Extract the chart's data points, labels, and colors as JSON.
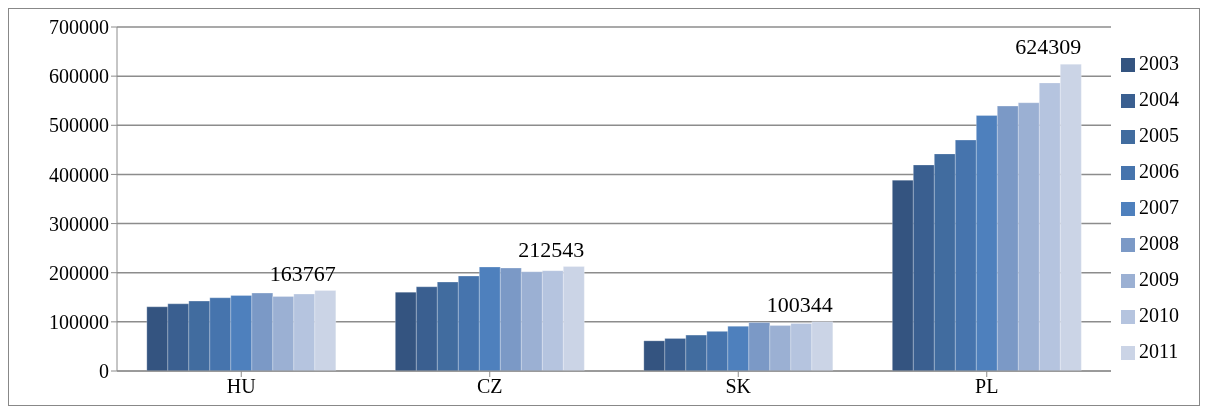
{
  "chart_data": {
    "type": "bar",
    "categories": [
      "HU",
      "CZ",
      "SK",
      "PL"
    ],
    "series": [
      {
        "name": "2003",
        "color": "#345480",
        "values": [
          130600,
          160500,
          61400,
          388400
        ]
      },
      {
        "name": "2004",
        "color": "#3a5f90",
        "values": [
          136700,
          171400,
          66200,
          419200
        ]
      },
      {
        "name": "2005",
        "color": "#416c9f",
        "values": [
          142200,
          181000,
          73100,
          441800
        ]
      },
      {
        "name": "2006",
        "color": "#4674ad",
        "values": [
          149000,
          193200,
          80700,
          469900
        ]
      },
      {
        "name": "2007",
        "color": "#4e80bd",
        "values": [
          153700,
          211600,
          91000,
          519900
        ]
      },
      {
        "name": "2008",
        "color": "#7b99c6",
        "values": [
          158500,
          209500,
          98600,
          539000
        ]
      },
      {
        "name": "2009",
        "color": "#9bb0d3",
        "values": [
          151700,
          202000,
          92400,
          545900
        ]
      },
      {
        "name": "2010",
        "color": "#b5c4df",
        "values": [
          156500,
          204100,
          96600,
          586300
        ]
      },
      {
        "name": "2011",
        "color": "#cbd4e6",
        "values": [
          163767,
          212543,
          100344,
          624309
        ],
        "value_labels": [
          "163767",
          "212543",
          "100344",
          "624309"
        ]
      }
    ],
    "ylim": [
      0,
      700000
    ],
    "yticks": [
      0,
      100000,
      200000,
      300000,
      400000,
      500000,
      600000,
      700000
    ],
    "grid": "y",
    "legend": "right"
  }
}
